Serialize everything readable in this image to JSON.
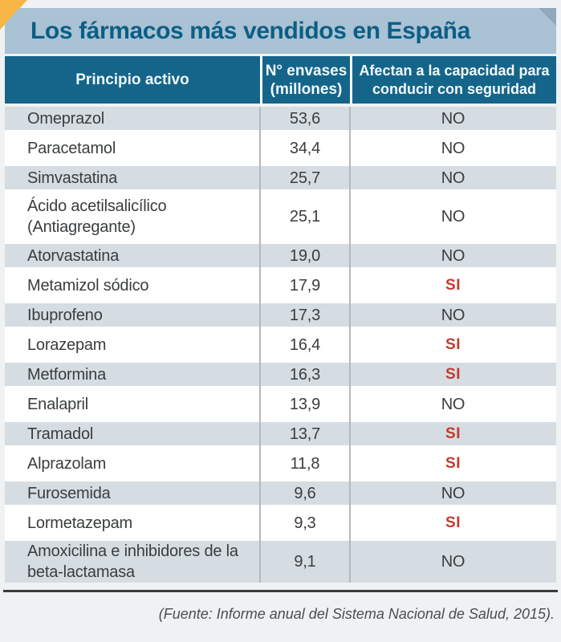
{
  "title": "Los fármacos más vendidos en España",
  "table": {
    "columns": [
      {
        "id": "principio_activo",
        "label": "Principio activo"
      },
      {
        "id": "envases",
        "label": "N° envases\n(millones)"
      },
      {
        "id": "conducir",
        "label": "Afectan a la capacidad para\nconducir con seguridad"
      }
    ],
    "rows": [
      {
        "name": "Omeprazol",
        "envases": "53,6",
        "conducir": "NO"
      },
      {
        "name": "Paracetamol",
        "envases": "34,4",
        "conducir": "NO"
      },
      {
        "name": "Simvastatina",
        "envases": "25,7",
        "conducir": "NO"
      },
      {
        "name": "Ácido acetilsalicílico\n(Antiagregante)",
        "envases": "25,1",
        "conducir": "NO"
      },
      {
        "name": "Atorvastatina",
        "envases": "19,0",
        "conducir": "NO"
      },
      {
        "name": "Metamizol sódico",
        "envases": "17,9",
        "conducir": "SI"
      },
      {
        "name": "Ibuprofeno",
        "envases": "17,3",
        "conducir": "NO"
      },
      {
        "name": "Lorazepam",
        "envases": "16,4",
        "conducir": "SI"
      },
      {
        "name": "Metformina",
        "envases": "16,3",
        "conducir": "SI"
      },
      {
        "name": "Enalapril",
        "envases": "13,9",
        "conducir": "NO"
      },
      {
        "name": "Tramadol",
        "envases": "13,7",
        "conducir": "SI"
      },
      {
        "name": "Alprazolam",
        "envases": "11,8",
        "conducir": "SI"
      },
      {
        "name": "Furosemida",
        "envases": "9,6",
        "conducir": "NO"
      },
      {
        "name": "Lormetazepam",
        "envases": "9,3",
        "conducir": "SI"
      },
      {
        "name": "Amoxicilina e inhibidores de la\nbeta-lactamasa",
        "envases": "9,1",
        "conducir": "NO"
      }
    ]
  },
  "footer": {
    "source": "(Fuente: Informe anual del Sistema Nacional de Salud, 2015)."
  },
  "colors": {
    "accent_yellow": "#f6b545",
    "band_blue": "#a9c2d4",
    "band_fold": "#91a8ba",
    "header_teal": "#15658a",
    "title_text": "#0d5e84",
    "row_light": "#d5dde3",
    "body_text": "#3a3d3f",
    "si_red": "#c4392f",
    "divider_gray": "#b3b9bd"
  },
  "chart_data": {
    "type": "table",
    "title": "Los fármacos más vendidos en España",
    "columns": [
      "Principio activo",
      "N° envases (millones)",
      "Afectan a la capacidad para conducir con seguridad"
    ],
    "rows": [
      [
        "Omeprazol",
        53.6,
        "NO"
      ],
      [
        "Paracetamol",
        34.4,
        "NO"
      ],
      [
        "Simvastatina",
        25.7,
        "NO"
      ],
      [
        "Ácido acetilsalicílico (Antiagregante)",
        25.1,
        "NO"
      ],
      [
        "Atorvastatina",
        19.0,
        "NO"
      ],
      [
        "Metamizol sódico",
        17.9,
        "SI"
      ],
      [
        "Ibuprofeno",
        17.3,
        "NO"
      ],
      [
        "Lorazepam",
        16.4,
        "SI"
      ],
      [
        "Metformina",
        16.3,
        "SI"
      ],
      [
        "Enalapril",
        13.9,
        "NO"
      ],
      [
        "Tramadol",
        13.7,
        "SI"
      ],
      [
        "Alprazolam",
        11.8,
        "SI"
      ],
      [
        "Furosemida",
        9.6,
        "NO"
      ],
      [
        "Lormetazepam",
        9.3,
        "SI"
      ],
      [
        "Amoxicilina e inhibidores de la beta-lactamasa",
        9.1,
        "NO"
      ]
    ],
    "source": "(Fuente: Informe anual del Sistema Nacional de Salud, 2015)."
  }
}
